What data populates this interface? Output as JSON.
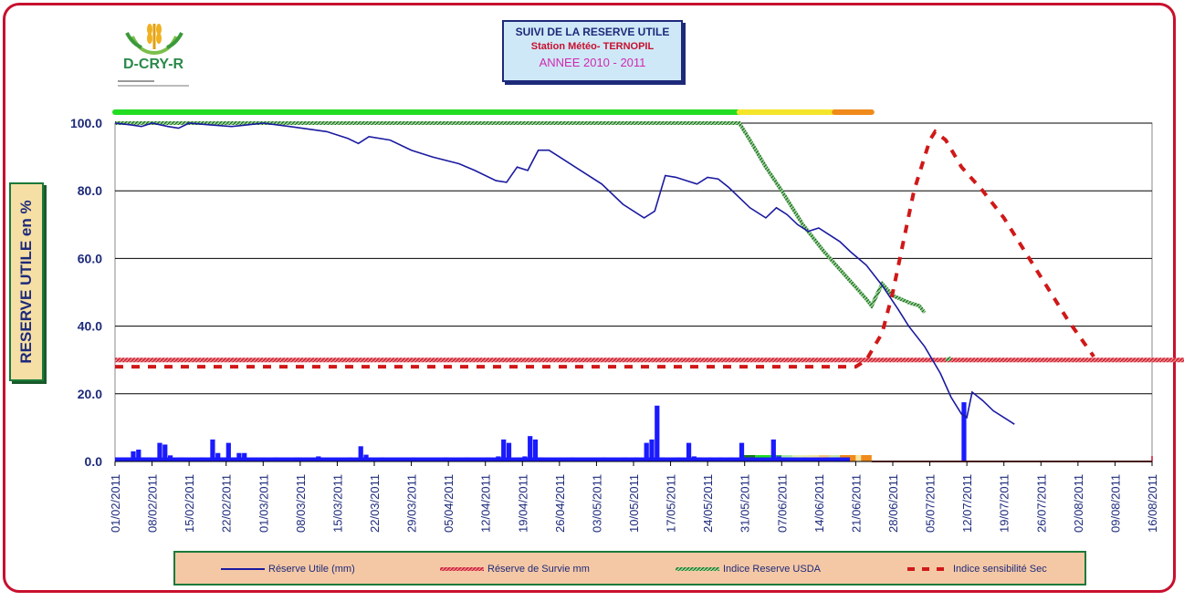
{
  "title": {
    "line1": "SUIVI   DE LA RESERVE UTILE",
    "line2": "Station Météo- TERNOPIL",
    "line3": "ANNEE 2010 - 2011"
  },
  "logo_text": "D-CRY-R",
  "ylabel": "RESERVE UTILE  en %",
  "colors": {
    "frame": "#c8102e",
    "reserve_utile": "#1a1aa0",
    "survie": "#c8102e",
    "usda": "#2e8b2e",
    "sensibilite": "#d01818",
    "bars": "#1a1aff"
  },
  "legend": [
    {
      "name": "reserve",
      "label": "Réserve Utile (mm)"
    },
    {
      "name": "survie",
      "label": "Réserve de Survie mm"
    },
    {
      "name": "usda",
      "label": "Indice Reserve USDA"
    },
    {
      "name": "sensibilite",
      "label": "Indice sensibilité Sec"
    }
  ],
  "chart_data": {
    "type": "line",
    "ylim": [
      0,
      100
    ],
    "yticks": [
      "0.0",
      "20.0",
      "40.0",
      "60.0",
      "80.0",
      "100.0"
    ],
    "grid": true,
    "x_start": "01/02/2011",
    "x_end": "16/08/2011",
    "xtick_labels": [
      "01/02/2011",
      "08/02/2011",
      "15/02/2011",
      "22/02/2011",
      "01/03/2011",
      "08/03/2011",
      "15/03/2011",
      "22/03/2011",
      "29/03/2011",
      "05/04/2011",
      "12/04/2011",
      "19/04/2011",
      "26/04/2011",
      "03/05/2011",
      "10/05/2011",
      "17/05/2011",
      "24/05/2011",
      "31/05/2011",
      "07/06/2011",
      "14/06/2011",
      "21/06/2011",
      "28/06/2011",
      "05/07/2011",
      "12/07/2011",
      "19/07/2011",
      "26/07/2011",
      "02/08/2011",
      "09/08/2011",
      "16/08/2011"
    ],
    "series": [
      {
        "name": "Réserve Utile (mm)",
        "style": "solid",
        "points": [
          [
            0,
            100
          ],
          [
            3,
            99.5
          ],
          [
            5,
            99
          ],
          [
            7,
            100
          ],
          [
            10,
            99
          ],
          [
            12,
            98.5
          ],
          [
            14,
            100
          ],
          [
            18,
            99.5
          ],
          [
            22,
            99
          ],
          [
            25,
            99.5
          ],
          [
            28,
            100
          ],
          [
            33,
            99
          ],
          [
            40,
            97.5
          ],
          [
            44,
            95.5
          ],
          [
            46,
            94
          ],
          [
            48,
            96
          ],
          [
            52,
            95
          ],
          [
            56,
            92
          ],
          [
            60,
            90
          ],
          [
            65,
            88
          ],
          [
            68,
            86
          ],
          [
            72,
            83
          ],
          [
            74,
            82.5
          ],
          [
            76,
            87
          ],
          [
            78,
            86
          ],
          [
            80,
            92
          ],
          [
            82,
            92
          ],
          [
            84,
            90
          ],
          [
            88,
            86
          ],
          [
            92,
            82
          ],
          [
            96,
            76
          ],
          [
            100,
            72
          ],
          [
            102,
            74
          ],
          [
            104,
            84.5
          ],
          [
            106,
            84
          ],
          [
            108,
            83
          ],
          [
            110,
            82
          ],
          [
            112,
            84
          ],
          [
            114,
            83.5
          ],
          [
            116,
            81
          ],
          [
            120,
            75
          ],
          [
            123,
            72
          ],
          [
            125,
            75
          ],
          [
            127,
            73
          ],
          [
            129,
            70
          ],
          [
            131,
            68
          ],
          [
            133,
            69
          ],
          [
            137,
            65
          ],
          [
            139,
            62
          ],
          [
            142,
            58
          ],
          [
            145,
            52
          ],
          [
            148,
            45
          ],
          [
            150,
            40
          ],
          [
            153,
            34
          ],
          [
            156,
            26
          ],
          [
            158,
            19
          ],
          [
            160,
            14
          ],
          [
            161,
            13
          ],
          [
            162,
            20.5
          ],
          [
            164,
            18
          ],
          [
            166,
            15
          ],
          [
            170,
            11
          ]
        ]
      },
      {
        "name": "Réserve de Survie mm",
        "style": "hatched",
        "points": [
          [
            0,
            30
          ],
          [
            203,
            30
          ]
        ]
      },
      {
        "name": "Indice Reserve USDA",
        "style": "hatched",
        "points": [
          [
            0,
            100
          ],
          [
            118,
            100
          ],
          [
            120,
            95
          ],
          [
            123,
            87
          ],
          [
            126,
            80
          ],
          [
            130,
            70
          ],
          [
            134,
            62
          ],
          [
            138,
            55
          ],
          [
            142,
            48
          ],
          [
            143,
            46
          ],
          [
            145,
            52.5
          ],
          [
            147,
            49
          ],
          [
            150,
            47
          ],
          [
            152,
            46
          ],
          [
            153,
            44
          ]
        ]
      },
      {
        "name": "Indice sensibilité Sec",
        "style": "dashed",
        "points": [
          [
            0,
            28
          ],
          [
            140,
            28
          ],
          [
            142,
            30
          ],
          [
            145,
            38
          ],
          [
            147,
            50
          ],
          [
            149,
            65
          ],
          [
            151,
            80
          ],
          [
            154,
            95
          ],
          [
            155,
            97.5
          ],
          [
            157,
            95
          ],
          [
            160,
            87
          ],
          [
            164,
            80
          ],
          [
            168,
            72
          ],
          [
            172,
            62
          ],
          [
            176,
            52
          ],
          [
            180,
            42
          ],
          [
            185,
            31
          ]
        ]
      }
    ],
    "usda_stub": [
      [
        157,
        30
      ],
      [
        158,
        30.5
      ]
    ],
    "precip_bars": [
      [
        0,
        1.2
      ],
      [
        1,
        1.2
      ],
      [
        2,
        1.2
      ],
      [
        3,
        3
      ],
      [
        4,
        3.5
      ],
      [
        5,
        1.2
      ],
      [
        6,
        1.2
      ],
      [
        8,
        5.5
      ],
      [
        9,
        5
      ],
      [
        10,
        1.8
      ],
      [
        12,
        1.2
      ],
      [
        16,
        1.2
      ],
      [
        18,
        6.5
      ],
      [
        19,
        2.5
      ],
      [
        20,
        1.2
      ],
      [
        21,
        5.5
      ],
      [
        22,
        1.2
      ],
      [
        23,
        2.5
      ],
      [
        24,
        2.5
      ],
      [
        30,
        1.2
      ],
      [
        34,
        1.2
      ],
      [
        38,
        1.5
      ],
      [
        44,
        1.2
      ],
      [
        46,
        4.5
      ],
      [
        47,
        2
      ],
      [
        50,
        1.2
      ],
      [
        56,
        1.2
      ],
      [
        62,
        1.2
      ],
      [
        66,
        1.2
      ],
      [
        70,
        1.2
      ],
      [
        72,
        1.5
      ],
      [
        73,
        6.5
      ],
      [
        74,
        5.5
      ],
      [
        76,
        1.2
      ],
      [
        77,
        1.5
      ],
      [
        78,
        7.5
      ],
      [
        79,
        6.5
      ],
      [
        80,
        1.2
      ],
      [
        86,
        1.2
      ],
      [
        92,
        1.2
      ],
      [
        96,
        1.2
      ],
      [
        98,
        1.2
      ],
      [
        100,
        5.5
      ],
      [
        101,
        6.5
      ],
      [
        102,
        16.5
      ],
      [
        103,
        1.2
      ],
      [
        106,
        1.2
      ],
      [
        108,
        5.5
      ],
      [
        109,
        1.5
      ],
      [
        110,
        1.2
      ],
      [
        112,
        1.2
      ],
      [
        114,
        1.2
      ],
      [
        116,
        1.2
      ],
      [
        118,
        5.5
      ],
      [
        119,
        1.2
      ],
      [
        120,
        1.2
      ],
      [
        122,
        1.2
      ],
      [
        124,
        6.5
      ],
      [
        125,
        1.5
      ],
      [
        126,
        1.2
      ],
      [
        128,
        1.2
      ],
      [
        130,
        1.2
      ],
      [
        132,
        1.2
      ],
      [
        134,
        1.2
      ],
      [
        136,
        1.2
      ],
      [
        138,
        1.2
      ],
      [
        160,
        17.5
      ]
    ],
    "stage_bar_top": [
      {
        "from": 0,
        "to": 118,
        "color": "#22dd22"
      },
      {
        "from": 118,
        "to": 136,
        "color": "#f5e52a"
      },
      {
        "from": 136,
        "to": 143,
        "color": "#f08a1a"
      }
    ],
    "stage_bar_bottom": [
      {
        "from": 118,
        "to": 121,
        "color": "#1a7a1a"
      },
      {
        "from": 121,
        "to": 124,
        "color": "#22dd22"
      },
      {
        "from": 124,
        "to": 126,
        "color": "#3aaa5a"
      },
      {
        "from": 126,
        "to": 128,
        "color": "#a8e8a8"
      },
      {
        "from": 128,
        "to": 131,
        "color": "#e8f0b0"
      },
      {
        "from": 131,
        "to": 133,
        "color": "#f5e5a0"
      },
      {
        "from": 133,
        "to": 135,
        "color": "#f5c880"
      },
      {
        "from": 135,
        "to": 137,
        "color": "#c8e8a8"
      },
      {
        "from": 137,
        "to": 140,
        "color": "#f08a1a"
      },
      {
        "from": 140,
        "to": 141,
        "color": "#f5e5a0"
      },
      {
        "from": 141,
        "to": 143,
        "color": "#f08a1a"
      }
    ]
  }
}
